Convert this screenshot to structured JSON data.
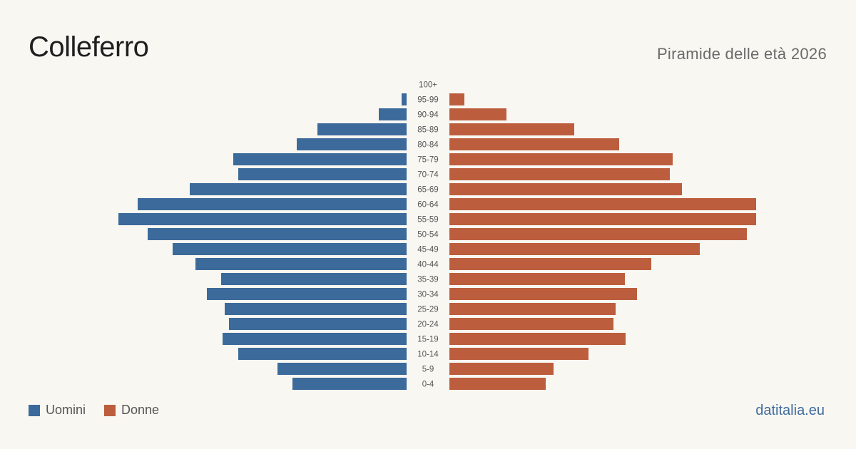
{
  "header": {
    "title": "Colleferro",
    "subtitle": "Piramide delle età 2026"
  },
  "legend": {
    "men_label": "Uomini",
    "women_label": "Donne"
  },
  "footer": {
    "brand": "datitalia.eu"
  },
  "colors": {
    "men": "#3c6a9b",
    "women": "#bc5e3d",
    "background": "#f9f7f2"
  },
  "chart_data": {
    "type": "bar",
    "orientation": "horizontal-pyramid",
    "categories": [
      "100+",
      "95-99",
      "90-94",
      "85-89",
      "80-84",
      "75-79",
      "70-74",
      "65-69",
      "60-64",
      "55-59",
      "50-54",
      "45-49",
      "40-44",
      "35-39",
      "30-34",
      "25-29",
      "20-24",
      "15-19",
      "10-14",
      "5-9",
      "0-4"
    ],
    "series": [
      {
        "name": "Uomini",
        "values": [
          0,
          7,
          39,
          125,
          154,
          243,
          236,
          304,
          377,
          404,
          363,
          328,
          296,
          260,
          280,
          255,
          249,
          258,
          236,
          181,
          160
        ]
      },
      {
        "name": "Donne",
        "values": [
          0,
          21,
          80,
          175,
          238,
          313,
          309,
          326,
          430,
          430,
          417,
          351,
          283,
          246,
          263,
          233,
          230,
          247,
          195,
          146,
          135
        ]
      }
    ],
    "legend_position": "bottom-left",
    "grid": false
  }
}
